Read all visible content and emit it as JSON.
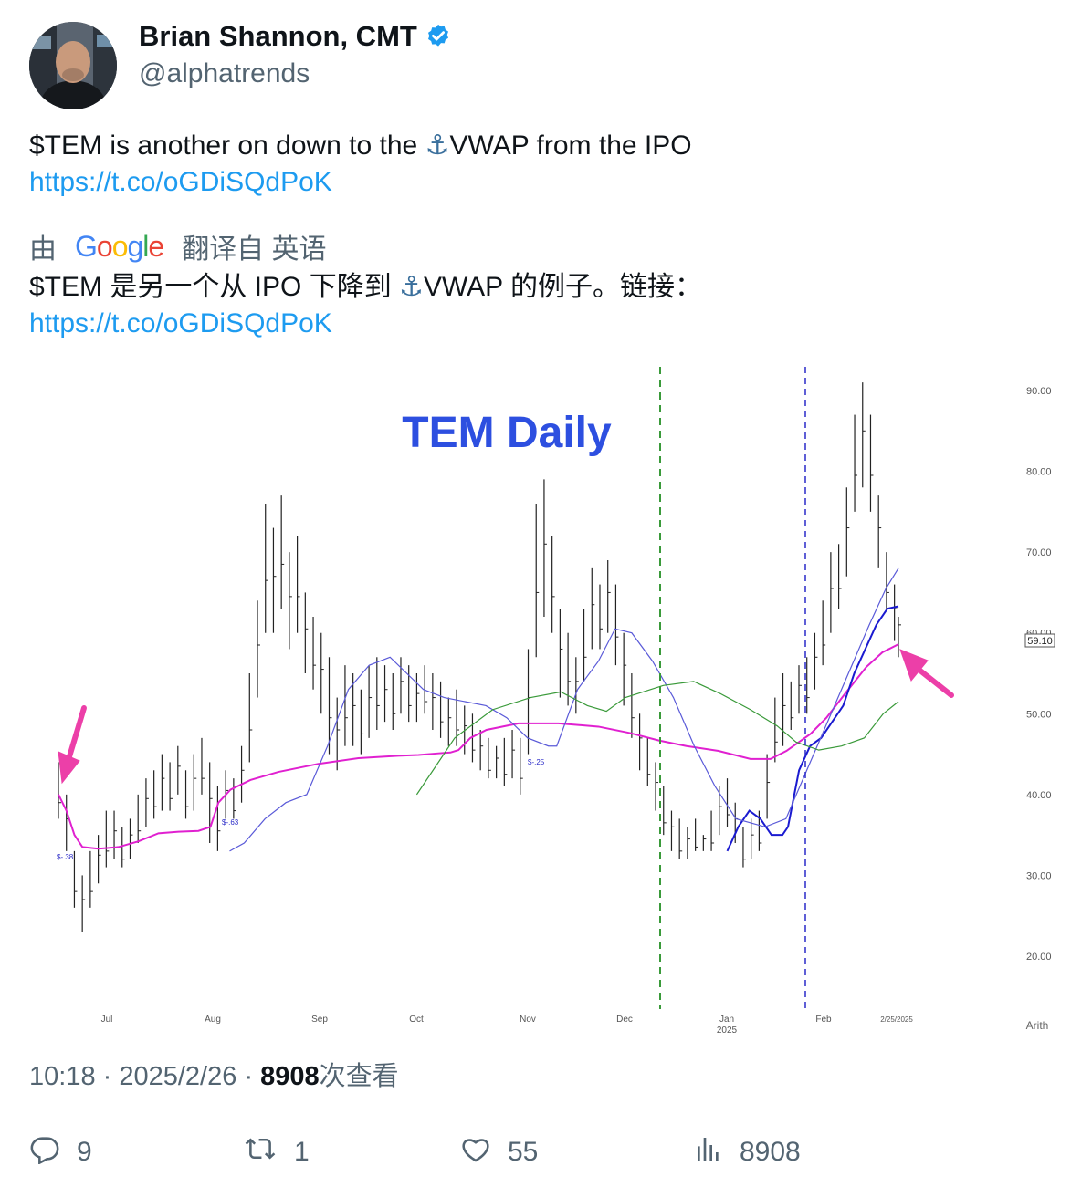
{
  "author": {
    "name": "Brian Shannon, CMT",
    "handle": "@alphatrends",
    "verified": true,
    "accent": "#1d9bf0"
  },
  "tweet": {
    "text_before": "$TEM is another on down to the ",
    "text_after": "VWAP from the IPO",
    "anchor_glyph": "⚓",
    "link": "https://t.co/oGDiSQdPoK"
  },
  "translation": {
    "prefix": "由",
    "provider": "Google",
    "suffix": "翻译自 英语",
    "text_before": "$TEM 是另一个从 IPO 下降到 ",
    "text_after": "VWAP 的例子。链接：",
    "link": "https://t.co/oGDiSQdPoK"
  },
  "chart_data": {
    "type": "bar",
    "title": "TEM Daily",
    "y_ticks": [
      "90.00",
      "80.00",
      "70.00",
      "60.00",
      "50.00",
      "40.00",
      "30.00",
      "20.00"
    ],
    "x_ticks": [
      "Jul",
      "Aug",
      "Sep",
      "Oct",
      "Nov",
      "Dec",
      "Jan",
      "Feb",
      "2/25/2025"
    ],
    "x_subtick": "2025",
    "last_price": "59.10",
    "scale_label": "Arith",
    "ylim": [
      20,
      90
    ],
    "annotations": [
      "$-.38",
      "$-.63",
      "$-.25"
    ],
    "series": [
      {
        "color": "#e020d0"
      },
      {
        "color": "#1a1ad0"
      },
      {
        "color": "#5a5ad8"
      },
      {
        "color": "#3a9a3a"
      }
    ],
    "price_bars": [
      {
        "i": 0,
        "h": 44,
        "l": 37
      },
      {
        "i": 2,
        "h": 40,
        "l": 33
      },
      {
        "i": 4,
        "h": 33,
        "l": 26
      },
      {
        "i": 6,
        "h": 30,
        "l": 23
      },
      {
        "i": 8,
        "h": 33,
        "l": 26
      },
      {
        "i": 10,
        "h": 35,
        "l": 29
      },
      {
        "i": 12,
        "h": 38,
        "l": 31
      },
      {
        "i": 14,
        "h": 38,
        "l": 32
      },
      {
        "i": 16,
        "h": 36,
        "l": 31
      },
      {
        "i": 18,
        "h": 37,
        "l": 32
      },
      {
        "i": 20,
        "h": 40,
        "l": 34
      },
      {
        "i": 22,
        "h": 42,
        "l": 36
      },
      {
        "i": 24,
        "h": 43,
        "l": 37
      },
      {
        "i": 26,
        "h": 45,
        "l": 38
      },
      {
        "i": 28,
        "h": 44,
        "l": 38
      },
      {
        "i": 30,
        "h": 46,
        "l": 40
      },
      {
        "i": 32,
        "h": 43,
        "l": 37
      },
      {
        "i": 34,
        "h": 45,
        "l": 38
      },
      {
        "i": 36,
        "h": 47,
        "l": 40
      },
      {
        "i": 38,
        "h": 44,
        "l": 34
      },
      {
        "i": 40,
        "h": 41,
        "l": 33
      },
      {
        "i": 42,
        "h": 43,
        "l": 37
      },
      {
        "i": 44,
        "h": 42,
        "l": 37
      },
      {
        "i": 46,
        "h": 46,
        "l": 39
      },
      {
        "i": 48,
        "h": 55,
        "l": 44
      },
      {
        "i": 50,
        "h": 64,
        "l": 52
      },
      {
        "i": 52,
        "h": 76,
        "l": 60
      },
      {
        "i": 54,
        "h": 73,
        "l": 60
      },
      {
        "i": 56,
        "h": 77,
        "l": 63
      },
      {
        "i": 58,
        "h": 70,
        "l": 58
      },
      {
        "i": 60,
        "h": 72,
        "l": 60
      },
      {
        "i": 62,
        "h": 65,
        "l": 55
      },
      {
        "i": 64,
        "h": 62,
        "l": 53
      },
      {
        "i": 66,
        "h": 60,
        "l": 50
      },
      {
        "i": 68,
        "h": 57,
        "l": 45
      },
      {
        "i": 70,
        "h": 52,
        "l": 43
      },
      {
        "i": 72,
        "h": 56,
        "l": 46
      },
      {
        "i": 74,
        "h": 55,
        "l": 46
      },
      {
        "i": 76,
        "h": 53,
        "l": 45
      },
      {
        "i": 78,
        "h": 56,
        "l": 47
      },
      {
        "i": 80,
        "h": 57,
        "l": 48
      },
      {
        "i": 82,
        "h": 56,
        "l": 49
      },
      {
        "i": 84,
        "h": 55,
        "l": 48
      },
      {
        "i": 86,
        "h": 57,
        "l": 50
      },
      {
        "i": 88,
        "h": 56,
        "l": 49
      },
      {
        "i": 90,
        "h": 55,
        "l": 49
      },
      {
        "i": 92,
        "h": 56,
        "l": 50
      },
      {
        "i": 94,
        "h": 55,
        "l": 48
      },
      {
        "i": 96,
        "h": 54,
        "l": 47
      },
      {
        "i": 98,
        "h": 52,
        "l": 46
      },
      {
        "i": 100,
        "h": 53,
        "l": 46
      },
      {
        "i": 102,
        "h": 51,
        "l": 45
      },
      {
        "i": 104,
        "h": 50,
        "l": 44
      },
      {
        "i": 106,
        "h": 48,
        "l": 43
      },
      {
        "i": 108,
        "h": 47,
        "l": 42
      },
      {
        "i": 110,
        "h": 46,
        "l": 42
      },
      {
        "i": 112,
        "h": 47,
        "l": 41
      },
      {
        "i": 114,
        "h": 48,
        "l": 42
      },
      {
        "i": 116,
        "h": 47,
        "l": 40
      },
      {
        "i": 118,
        "h": 58,
        "l": 45
      },
      {
        "i": 120,
        "h": 76,
        "l": 57
      },
      {
        "i": 122,
        "h": 79,
        "l": 62
      },
      {
        "i": 124,
        "h": 72,
        "l": 60
      },
      {
        "i": 126,
        "h": 63,
        "l": 52
      },
      {
        "i": 128,
        "h": 60,
        "l": 51
      },
      {
        "i": 130,
        "h": 57,
        "l": 50
      },
      {
        "i": 132,
        "h": 63,
        "l": 54
      },
      {
        "i": 134,
        "h": 68,
        "l": 58
      },
      {
        "i": 136,
        "h": 66,
        "l": 58
      },
      {
        "i": 138,
        "h": 69,
        "l": 60
      },
      {
        "i": 140,
        "h": 66,
        "l": 56
      },
      {
        "i": 142,
        "h": 60,
        "l": 51
      },
      {
        "i": 144,
        "h": 55,
        "l": 47
      },
      {
        "i": 146,
        "h": 50,
        "l": 43
      },
      {
        "i": 148,
        "h": 47,
        "l": 41
      },
      {
        "i": 150,
        "h": 44,
        "l": 38
      },
      {
        "i": 152,
        "h": 41,
        "l": 35
      },
      {
        "i": 154,
        "h": 38,
        "l": 33
      },
      {
        "i": 156,
        "h": 37,
        "l": 32
      },
      {
        "i": 158,
        "h": 36,
        "l": 32
      },
      {
        "i": 160,
        "h": 37,
        "l": 33
      },
      {
        "i": 162,
        "h": 35,
        "l": 33
      },
      {
        "i": 164,
        "h": 38,
        "l": 33
      },
      {
        "i": 166,
        "h": 41,
        "l": 35
      },
      {
        "i": 168,
        "h": 42,
        "l": 36
      },
      {
        "i": 170,
        "h": 39,
        "l": 34
      },
      {
        "i": 172,
        "h": 36,
        "l": 31
      },
      {
        "i": 174,
        "h": 37,
        "l": 32
      },
      {
        "i": 176,
        "h": 38,
        "l": 33
      },
      {
        "i": 178,
        "h": 45,
        "l": 37
      },
      {
        "i": 180,
        "h": 52,
        "l": 44
      },
      {
        "i": 182,
        "h": 55,
        "l": 46
      },
      {
        "i": 184,
        "h": 54,
        "l": 48
      },
      {
        "i": 186,
        "h": 56,
        "l": 50
      },
      {
        "i": 188,
        "h": 57,
        "l": 50
      },
      {
        "i": 190,
        "h": 60,
        "l": 53
      },
      {
        "i": 192,
        "h": 64,
        "l": 56
      },
      {
        "i": 194,
        "h": 70,
        "l": 60
      },
      {
        "i": 196,
        "h": 71,
        "l": 63
      },
      {
        "i": 198,
        "h": 78,
        "l": 67
      },
      {
        "i": 200,
        "h": 87,
        "l": 75
      },
      {
        "i": 202,
        "h": 91,
        "l": 78
      },
      {
        "i": 204,
        "h": 87,
        "l": 75
      },
      {
        "i": 206,
        "h": 77,
        "l": 68
      },
      {
        "i": 208,
        "h": 70,
        "l": 63
      },
      {
        "i": 210,
        "h": 66,
        "l": 59
      },
      {
        "i": 211,
        "h": 62,
        "l": 57
      }
    ]
  },
  "timestamp": {
    "time": "10:18",
    "date": "2025/2/26",
    "views_count": "8908",
    "views_label": "次查看"
  },
  "actions": {
    "replies": "9",
    "retweets": "1",
    "likes": "55",
    "views": "8908"
  }
}
